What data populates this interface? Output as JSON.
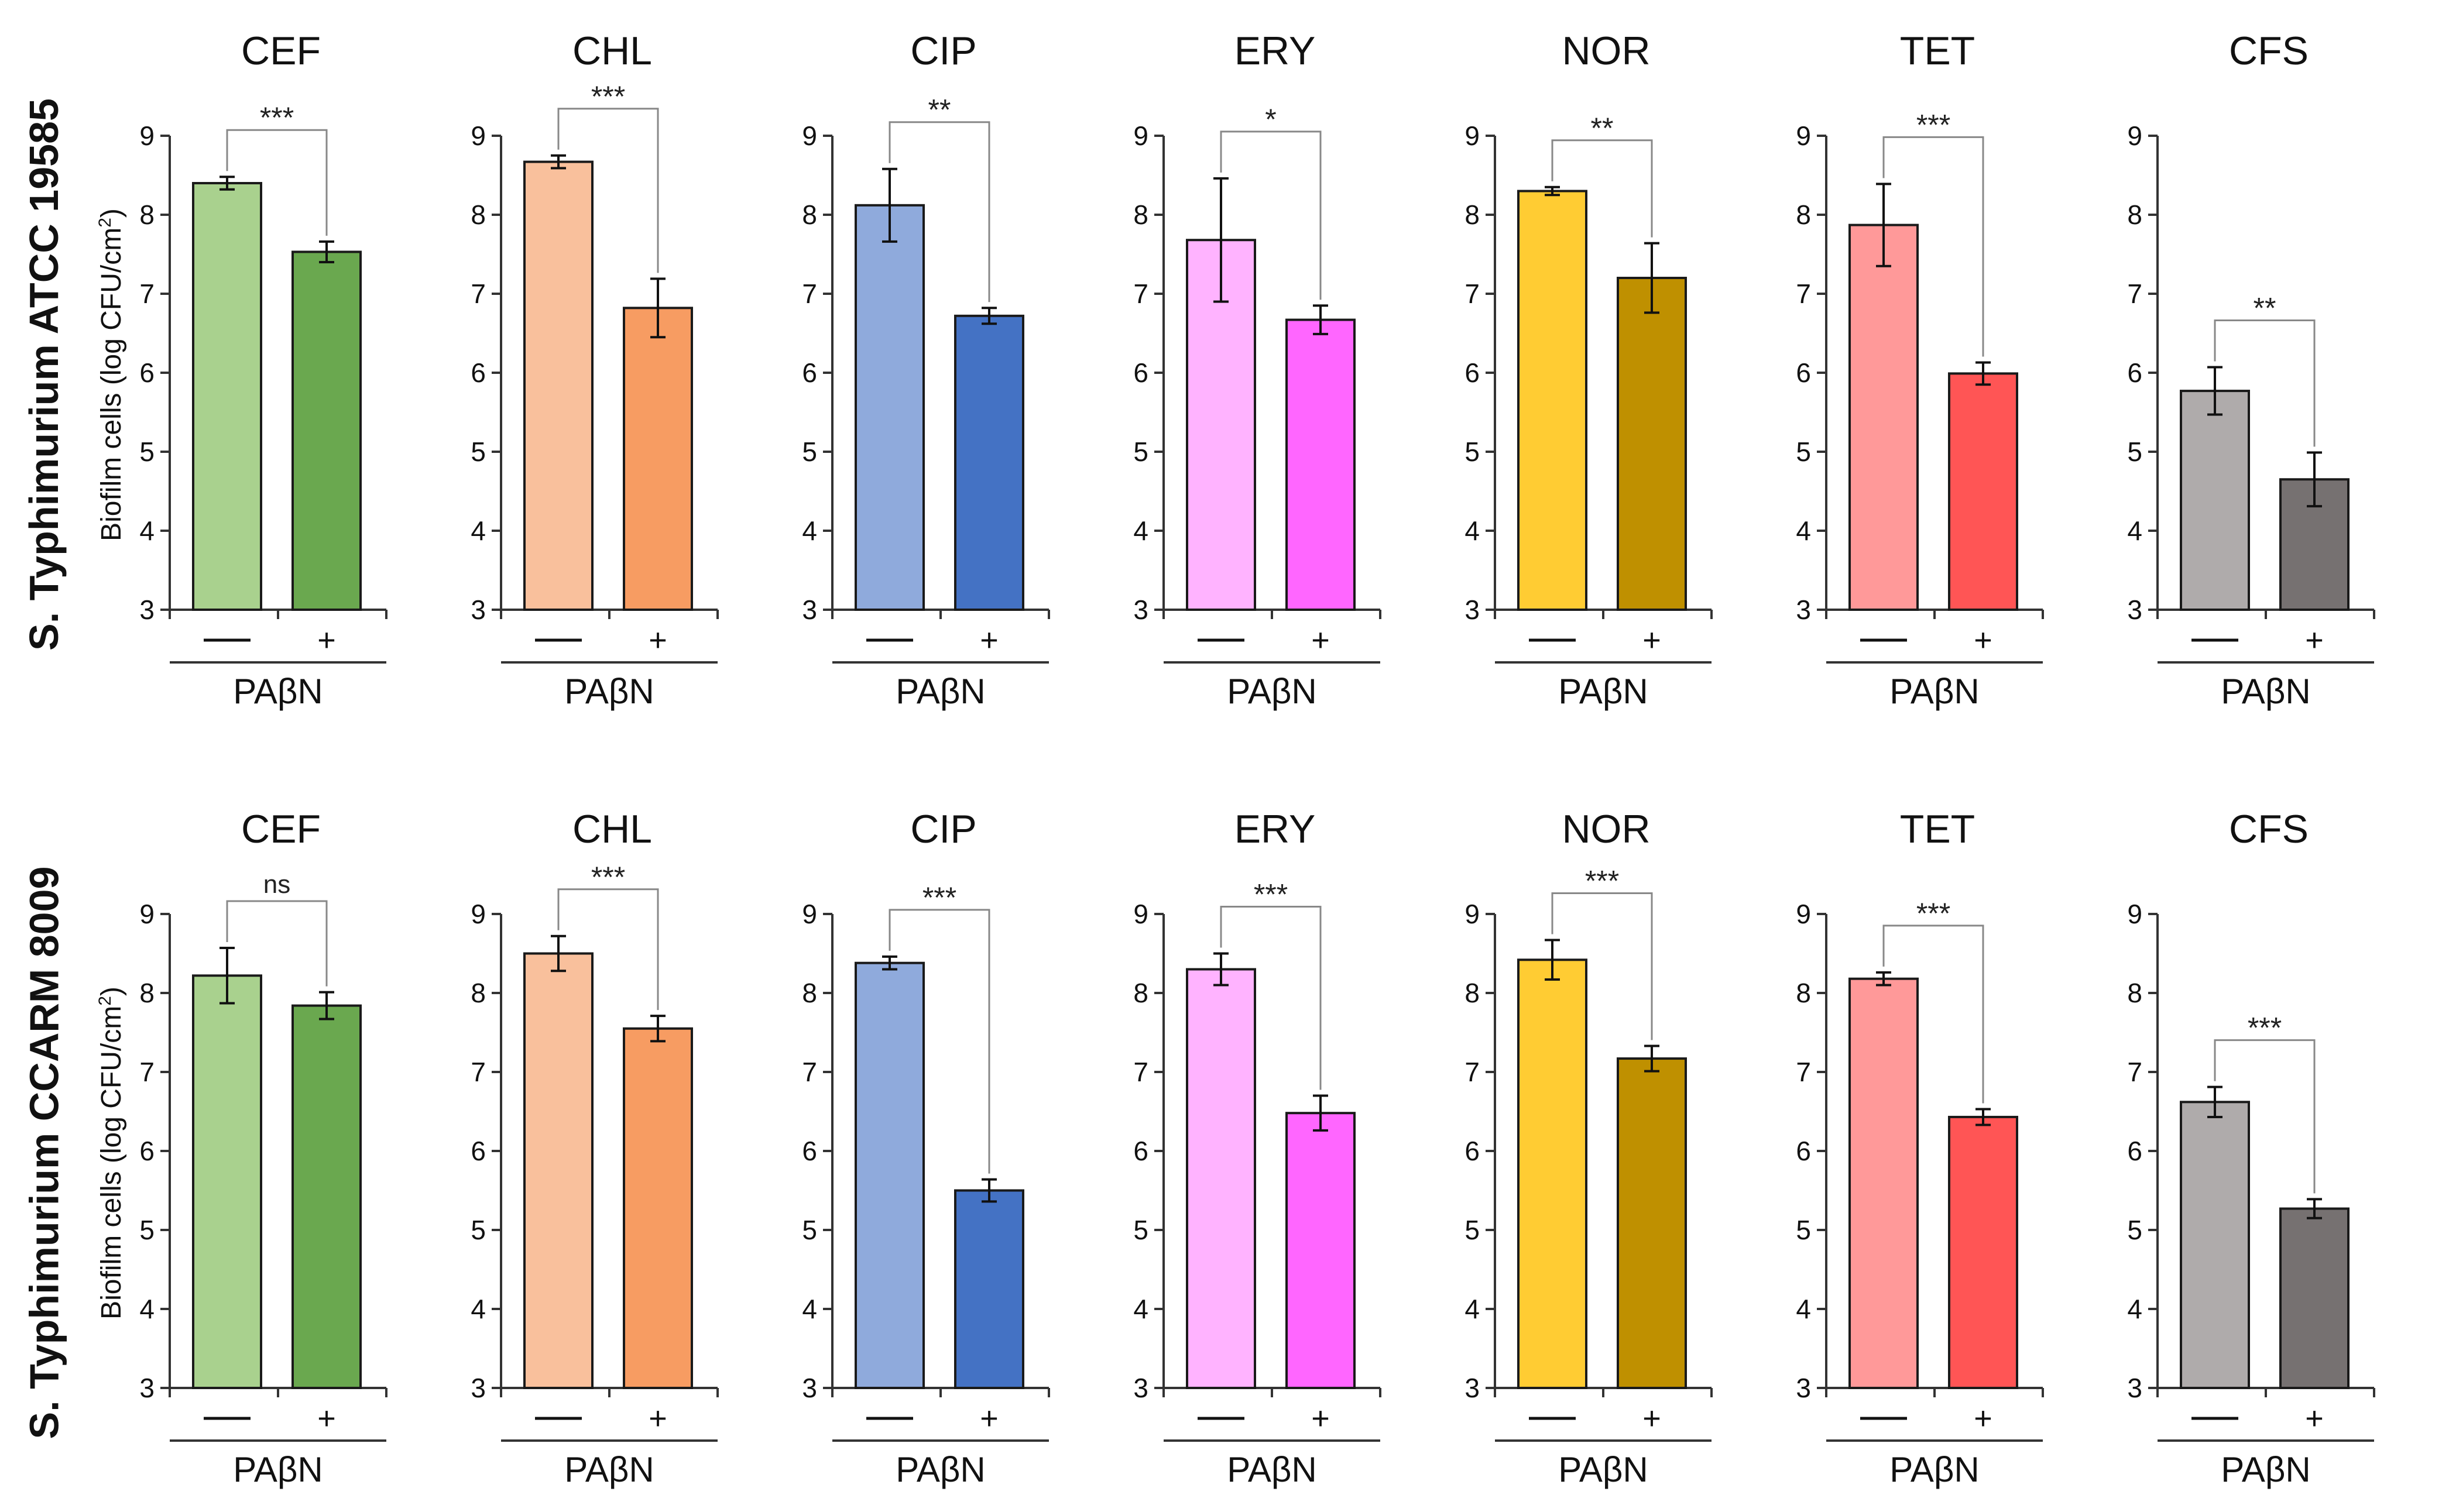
{
  "figure": {
    "y_axis_label_prefix": "Biofilm cells (log CFU/cm",
    "y_axis_label_sup": "2",
    "y_axis_label_suffix": ")",
    "group_label": "PAβN",
    "minus_label": "—",
    "plus_label": "+"
  },
  "chart_data": [
    {
      "type": "bar",
      "strain": "S. Typhimurium ATCC 19585",
      "ylim": [
        3,
        9
      ],
      "yticks": [
        3,
        4,
        5,
        6,
        7,
        8,
        9
      ],
      "xlabel": "PAβN",
      "ylabel": "Biofilm cells (log CFU/cm2)",
      "categories": [
        "—",
        "+"
      ],
      "panels": [
        {
          "title": "CEF",
          "values": [
            8.4,
            7.53
          ],
          "errors": [
            0.08,
            0.13
          ],
          "sig": "***",
          "colors": [
            "#a9d18e",
            "#6aa84f"
          ]
        },
        {
          "title": "CHL",
          "values": [
            8.67,
            6.82
          ],
          "errors": [
            0.08,
            0.37
          ],
          "sig": "***",
          "colors": [
            "#f9c09c",
            "#f79c62"
          ]
        },
        {
          "title": "CIP",
          "values": [
            8.12,
            6.72
          ],
          "errors": [
            0.46,
            0.1
          ],
          "sig": "**",
          "colors": [
            "#8faadc",
            "#4472c4"
          ]
        },
        {
          "title": "ERY",
          "values": [
            7.68,
            6.67
          ],
          "errors": [
            0.78,
            0.18
          ],
          "sig": "*",
          "colors": [
            "#ffb3ff",
            "#ff66ff"
          ]
        },
        {
          "title": "NOR",
          "values": [
            8.3,
            7.2
          ],
          "errors": [
            0.05,
            0.44
          ],
          "sig": "**",
          "colors": [
            "#ffcc33",
            "#bf9000"
          ]
        },
        {
          "title": "TET",
          "values": [
            7.87,
            5.99
          ],
          "errors": [
            0.52,
            0.14
          ],
          "sig": "***",
          "colors": [
            "#ff9999",
            "#ff5555"
          ]
        },
        {
          "title": "CFS",
          "values": [
            5.77,
            4.65
          ],
          "errors": [
            0.3,
            0.34
          ],
          "sig": "**",
          "colors": [
            "#afabab",
            "#767171"
          ]
        }
      ]
    },
    {
      "type": "bar",
      "strain": "S. Typhimurium CCARM 8009",
      "ylim": [
        3,
        9
      ],
      "yticks": [
        3,
        4,
        5,
        6,
        7,
        8,
        9
      ],
      "xlabel": "PAβN",
      "ylabel": "Biofilm cells (log CFU/cm2)",
      "categories": [
        "—",
        "+"
      ],
      "panels": [
        {
          "title": "CEF",
          "values": [
            8.22,
            7.84
          ],
          "errors": [
            0.35,
            0.17
          ],
          "sig": "ns",
          "colors": [
            "#a9d18e",
            "#6aa84f"
          ]
        },
        {
          "title": "CHL",
          "values": [
            8.5,
            7.55
          ],
          "errors": [
            0.22,
            0.16
          ],
          "sig": "***",
          "colors": [
            "#f9c09c",
            "#f79c62"
          ]
        },
        {
          "title": "CIP",
          "values": [
            8.38,
            5.5
          ],
          "errors": [
            0.08,
            0.14
          ],
          "sig": "***",
          "colors": [
            "#8faadc",
            "#4472c4"
          ]
        },
        {
          "title": "ERY",
          "values": [
            8.3,
            6.48
          ],
          "errors": [
            0.2,
            0.22
          ],
          "sig": "***",
          "colors": [
            "#ffb3ff",
            "#ff66ff"
          ]
        },
        {
          "title": "NOR",
          "values": [
            8.42,
            7.17
          ],
          "errors": [
            0.25,
            0.16
          ],
          "sig": "***",
          "colors": [
            "#ffcc33",
            "#bf9000"
          ]
        },
        {
          "title": "TET",
          "values": [
            8.18,
            6.43
          ],
          "errors": [
            0.08,
            0.1
          ],
          "sig": "***",
          "colors": [
            "#ff9999",
            "#ff5555"
          ]
        },
        {
          "title": "CFS",
          "values": [
            6.62,
            5.27
          ],
          "errors": [
            0.19,
            0.12
          ],
          "sig": "***",
          "colors": [
            "#afabab",
            "#767171"
          ]
        }
      ]
    }
  ]
}
